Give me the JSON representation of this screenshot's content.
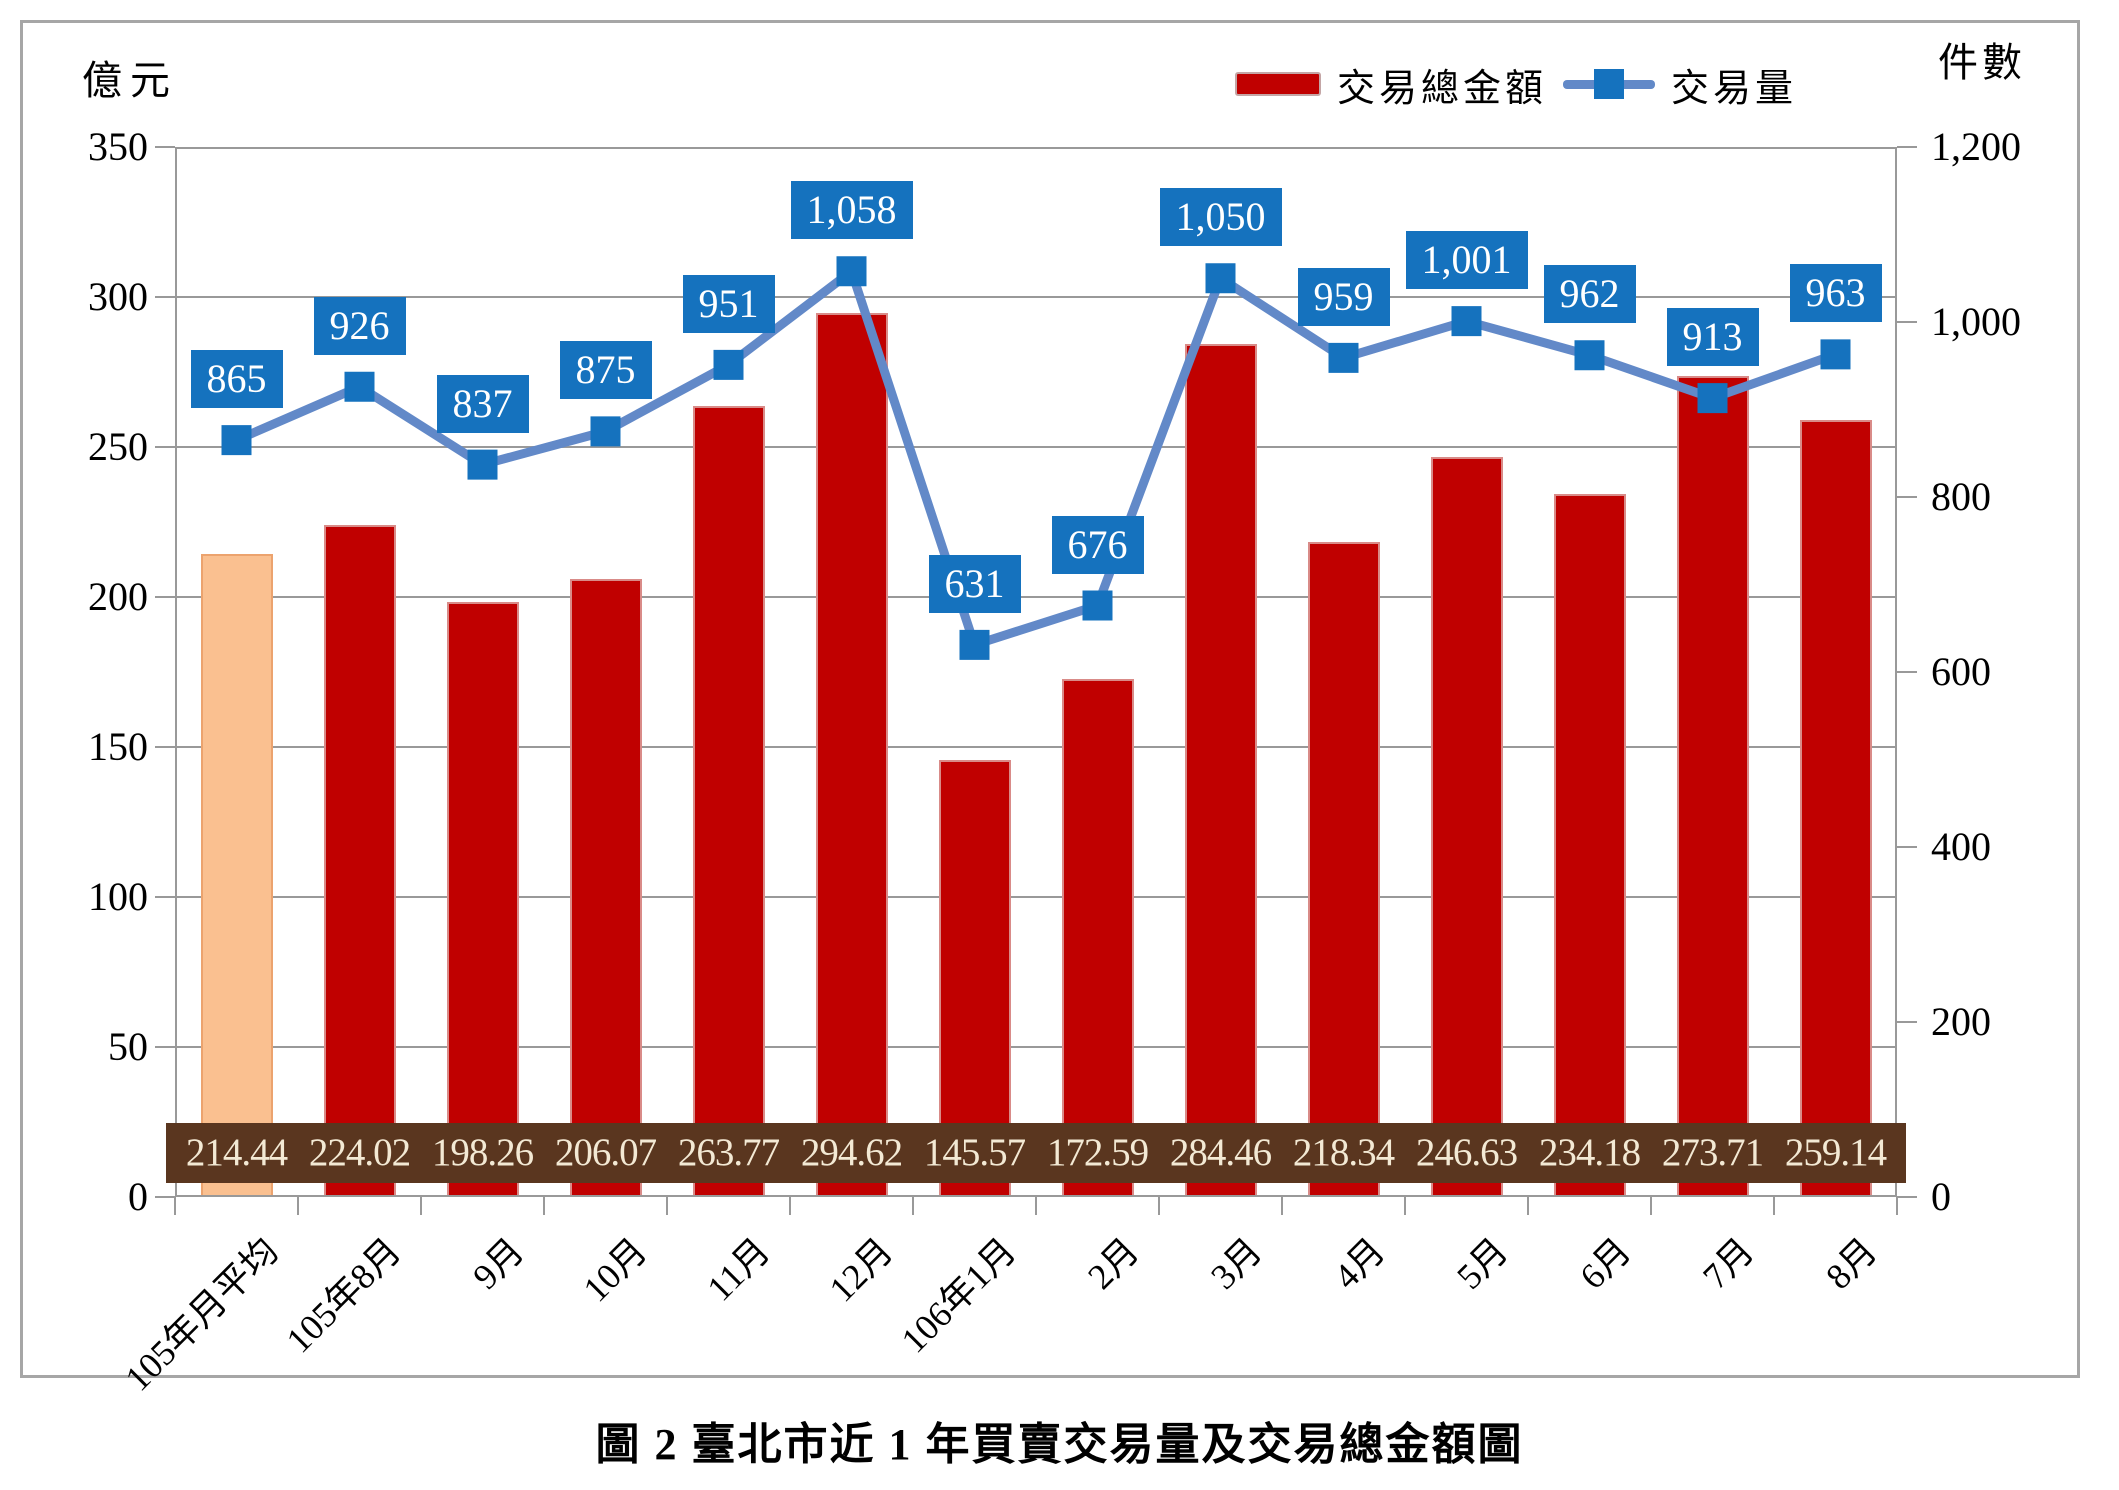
{
  "page": {
    "caption": "圖 2 臺北市近 1 年買賣交易量及交易總金額圖",
    "left_unit": "億元",
    "right_unit": "件數"
  },
  "legend": {
    "position": "top",
    "items": [
      {
        "label": "交易總金額",
        "swatch": "red-bar",
        "color": "#C00000"
      },
      {
        "label": "交易量",
        "swatch": "blue-line-with-square-marker",
        "color": "#1572BE"
      }
    ]
  },
  "chart_data": {
    "type": "bar",
    "subtype": "combo bar + line, dual axis",
    "categories": [
      "105年月平均",
      "105年8月",
      "9月",
      "10月",
      "11月",
      "12月",
      "106年1月",
      "2月",
      "3月",
      "4月",
      "5月",
      "6月",
      "7月",
      "8月"
    ],
    "series": [
      {
        "name": "交易總金額",
        "type": "bar",
        "axis": "left",
        "values": [
          214.44,
          224.02,
          198.26,
          206.07,
          263.77,
          294.62,
          145.57,
          172.59,
          284.46,
          218.34,
          246.63,
          234.18,
          273.71,
          259.14
        ],
        "value_labels": [
          "214.44",
          "224.02",
          "198.26",
          "206.07",
          "263.77",
          "294.62",
          "145.57",
          "172.59",
          "284.46",
          "218.34",
          "246.63",
          "234.18",
          "273.71",
          "259.14"
        ],
        "bar_color": "#C00000",
        "bar_border_color": "#D98B88",
        "first_bar_color": "#FAC090",
        "first_bar_border_color": "#ECA36E",
        "note": "first category 105年月平均 bar is highlighted in peach; values shown in brown band above x-axis"
      },
      {
        "name": "交易量",
        "type": "line",
        "axis": "right",
        "values": [
          865,
          926,
          837,
          875,
          951,
          1058,
          631,
          676,
          1050,
          959,
          1001,
          962,
          913,
          963
        ],
        "value_labels": [
          "865",
          "926",
          "837",
          "875",
          "951",
          "1,058",
          "631",
          "676",
          "1,050",
          "959",
          "1,001",
          "962",
          "913",
          "963"
        ],
        "line_color": "#6289C8",
        "marker_color": "#1572BE",
        "label_box_color": "#1572BE",
        "label_text_color": "#FFFFFF"
      }
    ],
    "left_axis": {
      "unit": "億元",
      "min": 0,
      "max": 350,
      "step": 50,
      "tick_labels": [
        "0",
        "50",
        "100",
        "150",
        "200",
        "250",
        "300",
        "350"
      ]
    },
    "right_axis": {
      "unit": "件數",
      "min": 0,
      "max": 1200,
      "step": 200,
      "tick_labels": [
        "0",
        "200",
        "400",
        "600",
        "800",
        "1,000",
        "1,200"
      ]
    },
    "grid": "horizontal gridlines every 50 units of left axis",
    "value_band": {
      "background": "#5A361F",
      "text_color": "#F3E9D4"
    },
    "axis_color": "#999999",
    "frame_border_color": "#A6A6A6"
  }
}
